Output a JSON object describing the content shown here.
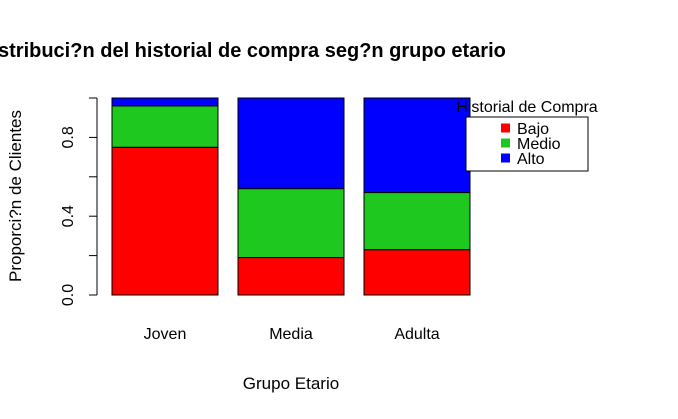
{
  "chart_data": {
    "type": "bar",
    "stacked": true,
    "title": "stribuci?n del historial de compra seg?n grupo etario",
    "xlabel": "Grupo Etario",
    "ylabel": "Proporci?n de Clientes",
    "categories": [
      "Joven",
      "Media",
      "Adulta"
    ],
    "series": [
      {
        "name": "Bajo",
        "color": "#ff0000",
        "values": [
          0.75,
          0.19,
          0.23
        ]
      },
      {
        "name": "Medio",
        "color": "#1ec81e",
        "values": [
          0.21,
          0.35,
          0.29
        ]
      },
      {
        "name": "Alto",
        "color": "#0000ff",
        "values": [
          0.04,
          0.46,
          0.48
        ]
      }
    ],
    "ylim": [
      0,
      1
    ],
    "yticks": [
      0.0,
      0.2,
      0.4,
      0.6,
      0.8,
      1.0
    ],
    "ytick_labels": [
      "0.0",
      "",
      "0.4",
      "",
      "0.8",
      ""
    ],
    "legend": {
      "title": "Historial de Compra",
      "placement": "top-right"
    },
    "grid": false
  }
}
